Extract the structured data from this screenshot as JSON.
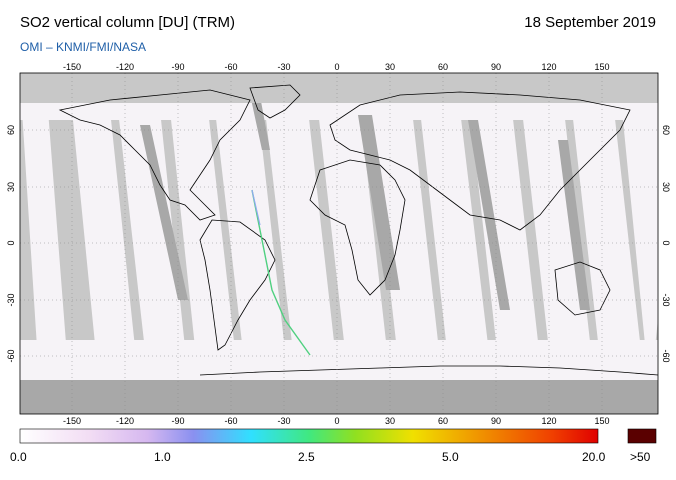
{
  "header": {
    "title": "SO2 vertical column [DU] (TRM)",
    "date": "18 September 2019",
    "credit": "OMI  –  KNMI/FMI/NASA"
  },
  "map": {
    "lon_ticks": [
      "-150",
      "-120",
      "-90",
      "-60",
      "-30",
      "0",
      "30",
      "60",
      "90",
      "120",
      "150"
    ],
    "lat_ticks": [
      "60",
      "30",
      "0",
      "-30",
      "-60"
    ],
    "colors": {
      "no_data": "#c8c8c8",
      "swath_gap": "#a8a8a8",
      "polar": "#b4b4b4",
      "background": "#f6f3f7",
      "coastline": "#000000"
    }
  },
  "colorbar": {
    "labels": [
      "0.0",
      "1.0",
      "2.5",
      "5.0",
      "20.0"
    ],
    "overflow_label": ">50",
    "overflow_color": "#5a0000",
    "stops": [
      "#ffffff",
      "#f0d0f0",
      "#b8a8f0",
      "#6080f0",
      "#30e0ff",
      "#50e070",
      "#a0e020",
      "#f0e000",
      "#f0a000",
      "#f05000",
      "#e00000"
    ]
  }
}
